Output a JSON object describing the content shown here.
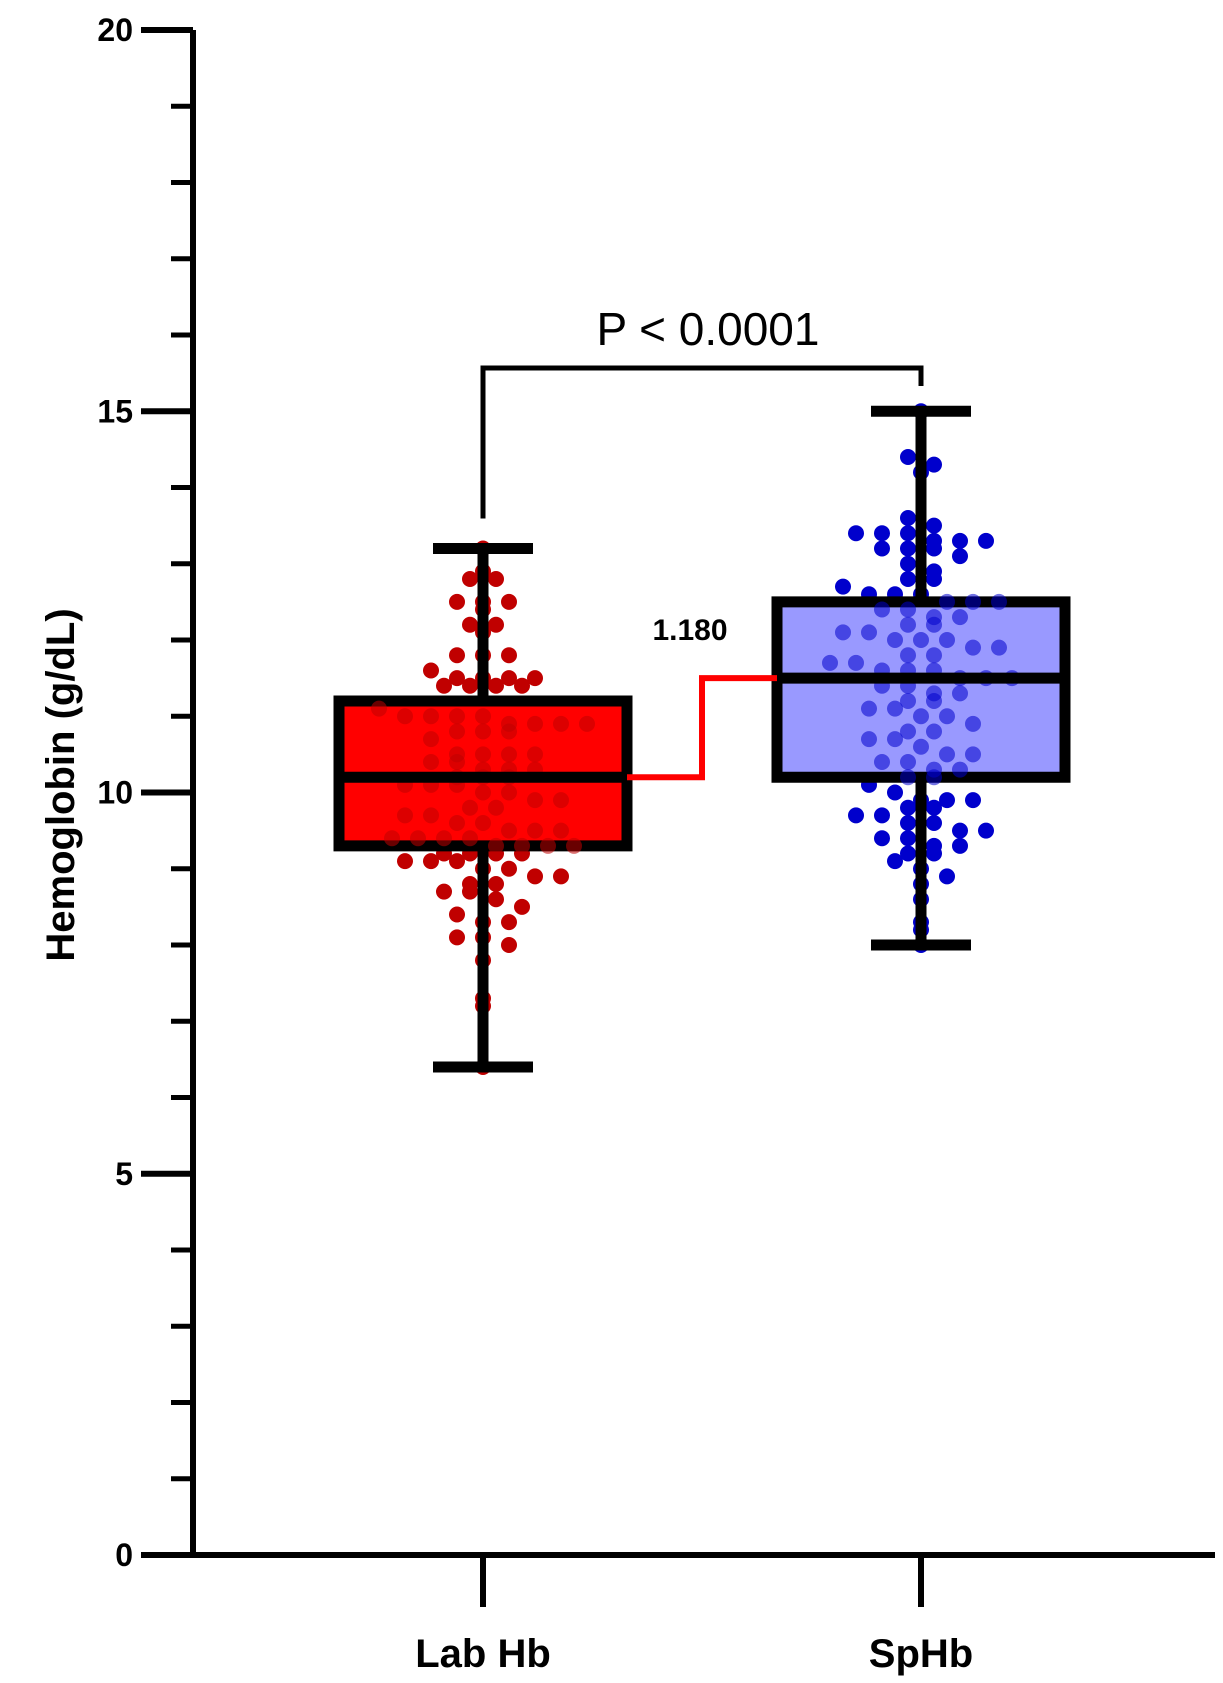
{
  "chart_data": {
    "type": "box",
    "ylabel": "Hemoglobin (g/dL)",
    "xlabel": "",
    "ylim": [
      0,
      20
    ],
    "yticks_major": [
      0,
      5,
      10,
      15,
      20
    ],
    "ytick_labels": [
      "0",
      "5",
      "10",
      "15",
      "20"
    ],
    "yticks_minor_step": 1,
    "grid": false,
    "legend": "none",
    "categories": [
      "Lab Hb",
      "SpHb"
    ],
    "series": [
      {
        "category": "Lab Hb",
        "box_color": "#ff0000",
        "point_color": "#c00000",
        "min": 6.4,
        "q1": 9.3,
        "median": 10.2,
        "q3": 11.2,
        "max": 13.2,
        "points": [
          13.2,
          12.9,
          12.8,
          12.8,
          12.5,
          12.5,
          12.5,
          12.4,
          12.2,
          12.2,
          12.1,
          11.8,
          11.8,
          11.8,
          11.6,
          11.5,
          11.5,
          11.5,
          11.5,
          11.4,
          11.4,
          11.4,
          11.4,
          11.1,
          11.0,
          11.0,
          11.0,
          11.0,
          10.9,
          10.9,
          10.9,
          10.9,
          10.8,
          10.8,
          10.8,
          10.7,
          10.5,
          10.5,
          10.5,
          10.5,
          10.4,
          10.4,
          10.3,
          10.3,
          10.3,
          10.2,
          10.2,
          10.2,
          10.1,
          10.1,
          10.1,
          10.0,
          10.0,
          9.9,
          9.9,
          9.8,
          9.8,
          9.7,
          9.7,
          9.6,
          9.6,
          9.5,
          9.5,
          9.5,
          9.4,
          9.4,
          9.4,
          9.4,
          9.3,
          9.3,
          9.3,
          9.3,
          9.2,
          9.2,
          9.2,
          9.2,
          9.1,
          9.1,
          9.1,
          9.0,
          9.0,
          8.9,
          8.9,
          8.8,
          8.8,
          8.7,
          8.7,
          8.6,
          8.5,
          8.4,
          8.3,
          8.3,
          8.1,
          8.1,
          8.0,
          7.8,
          7.3,
          7.2,
          6.4
        ]
      },
      {
        "category": "SpHb",
        "box_color": "#9999ff",
        "point_color": "#0000cc",
        "min": 8.0,
        "q1": 10.2,
        "median": 11.5,
        "q3": 12.5,
        "max": 15.0,
        "points": [
          15.0,
          14.4,
          14.3,
          14.2,
          13.6,
          13.5,
          13.4,
          13.4,
          13.4,
          13.3,
          13.3,
          13.3,
          13.2,
          13.2,
          13.2,
          13.1,
          13.0,
          12.9,
          12.8,
          12.8,
          12.7,
          12.6,
          12.6,
          12.6,
          12.5,
          12.5,
          12.5,
          12.4,
          12.4,
          12.3,
          12.3,
          12.2,
          12.2,
          12.1,
          12.1,
          12.0,
          12.0,
          12.0,
          11.9,
          11.9,
          11.8,
          11.8,
          11.7,
          11.7,
          11.6,
          11.6,
          11.6,
          11.5,
          11.5,
          11.5,
          11.4,
          11.4,
          11.3,
          11.3,
          11.2,
          11.2,
          11.1,
          11.1,
          11.0,
          11.0,
          10.9,
          10.8,
          10.8,
          10.7,
          10.7,
          10.6,
          10.5,
          10.5,
          10.4,
          10.4,
          10.3,
          10.3,
          10.2,
          10.2,
          10.1,
          10.0,
          9.9,
          9.9,
          9.9,
          9.8,
          9.8,
          9.7,
          9.7,
          9.6,
          9.6,
          9.5,
          9.5,
          9.4,
          9.4,
          9.3,
          9.3,
          9.2,
          9.2,
          9.1,
          9.0,
          8.9,
          8.8,
          8.6,
          8.3,
          8.2,
          8.0
        ]
      }
    ],
    "annotations": {
      "significance": "P < 0.0001",
      "median_difference": "1.180"
    },
    "colors": {
      "axis": "#000000",
      "connector": "#ff0000"
    }
  }
}
